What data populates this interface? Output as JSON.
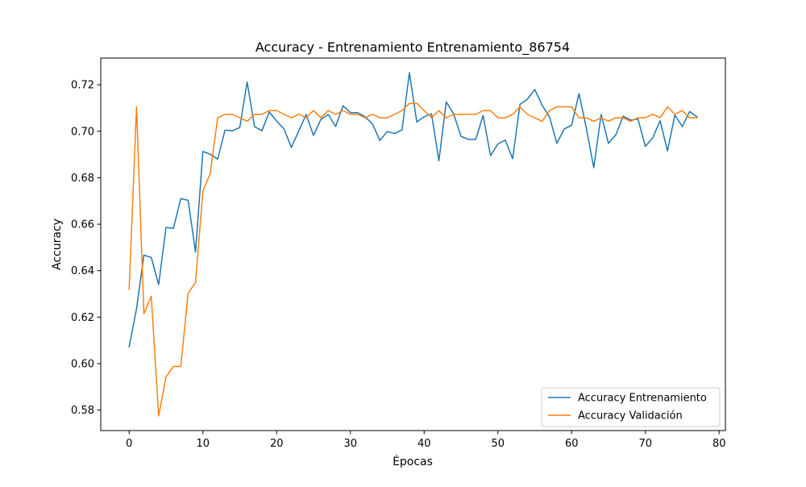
{
  "chart_data": {
    "type": "line",
    "title": "Accuracy - Entrenamiento Entrenamiento_86754",
    "xlabel": "Épocas",
    "ylabel": "Accuracy",
    "xlim": [
      -3.85,
      80.85
    ],
    "ylim": [
      0.5712,
      0.7315
    ],
    "xticks": [
      0,
      10,
      20,
      30,
      40,
      50,
      60,
      70,
      80
    ],
    "xtick_labels": [
      "0",
      "10",
      "20",
      "30",
      "40",
      "50",
      "60",
      "70",
      "80"
    ],
    "yticks": [
      0.58,
      0.6,
      0.62,
      0.64,
      0.66,
      0.68,
      0.7,
      0.72
    ],
    "ytick_labels": [
      "0.58",
      "0.60",
      "0.62",
      "0.64",
      "0.66",
      "0.68",
      "0.70",
      "0.72"
    ],
    "grid": false,
    "legend_position": "bottom-right",
    "x": [
      0,
      1,
      2,
      3,
      4,
      5,
      6,
      7,
      8,
      9,
      10,
      11,
      12,
      13,
      14,
      15,
      16,
      17,
      18,
      19,
      20,
      21,
      22,
      23,
      24,
      25,
      26,
      27,
      28,
      29,
      30,
      31,
      32,
      33,
      34,
      35,
      36,
      37,
      38,
      39,
      40,
      41,
      42,
      43,
      44,
      45,
      46,
      47,
      48,
      49,
      50,
      51,
      52,
      53,
      54,
      55,
      56,
      57,
      58,
      59,
      60,
      61,
      62,
      63,
      64,
      65,
      66,
      67,
      68,
      69,
      70,
      71,
      72,
      73,
      74,
      75,
      76,
      77
    ],
    "series": [
      {
        "name": "Accuracy Entrenamiento",
        "color": "#1f77b4",
        "values": [
          0.6072,
          0.6236,
          0.6467,
          0.6457,
          0.634,
          0.6586,
          0.6582,
          0.671,
          0.6703,
          0.648,
          0.6913,
          0.6901,
          0.688,
          0.7005,
          0.7002,
          0.7016,
          0.7212,
          0.702,
          0.7002,
          0.7083,
          0.7044,
          0.701,
          0.693,
          0.7002,
          0.7072,
          0.6982,
          0.7051,
          0.7072,
          0.702,
          0.711,
          0.708,
          0.708,
          0.7062,
          0.7031,
          0.696,
          0.6999,
          0.699,
          0.7006,
          0.7252,
          0.704,
          0.7062,
          0.7075,
          0.6873,
          0.7126,
          0.7075,
          0.6978,
          0.6965,
          0.6965,
          0.7068,
          0.6895,
          0.6945,
          0.6962,
          0.6882,
          0.7116,
          0.7138,
          0.718,
          0.7112,
          0.7062,
          0.6948,
          0.701,
          0.7026,
          0.7162,
          0.7012,
          0.6843,
          0.7072,
          0.6948,
          0.6985,
          0.7065,
          0.7048,
          0.7052,
          0.6935,
          0.6972,
          0.7045,
          0.6915,
          0.707,
          0.702,
          0.7085,
          0.7062
        ]
      },
      {
        "name": "Accuracy Validación",
        "color": "#ff7f0e",
        "values": [
          0.632,
          0.7105,
          0.6215,
          0.629,
          0.5775,
          0.5943,
          0.5988,
          0.5988,
          0.6303,
          0.6349,
          0.6743,
          0.6818,
          0.7058,
          0.7073,
          0.7073,
          0.7058,
          0.7043,
          0.7073,
          0.7073,
          0.7089,
          0.7089,
          0.7073,
          0.7058,
          0.7073,
          0.7058,
          0.7089,
          0.7058,
          0.7089,
          0.7073,
          0.7089,
          0.7073,
          0.7073,
          0.7058,
          0.7073,
          0.7058,
          0.7058,
          0.7073,
          0.7089,
          0.712,
          0.712,
          0.7089,
          0.7058,
          0.7089,
          0.7058,
          0.7073,
          0.7073,
          0.7073,
          0.7073,
          0.7089,
          0.7089,
          0.7058,
          0.7058,
          0.7073,
          0.7105,
          0.7073,
          0.7058,
          0.7043,
          0.7089,
          0.7105,
          0.7105,
          0.7105,
          0.7058,
          0.7058,
          0.7043,
          0.7058,
          0.7043,
          0.7058,
          0.7058,
          0.7043,
          0.7058,
          0.7058,
          0.7073,
          0.7058,
          0.7105,
          0.7073,
          0.7089,
          0.7058,
          0.7058
        ]
      }
    ]
  }
}
